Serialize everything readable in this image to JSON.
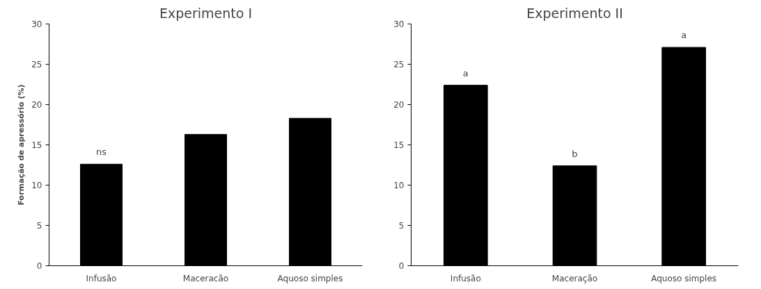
{
  "chart_data": [
    {
      "type": "bar",
      "title": "Experimento I",
      "ylabel": "Formação de apressório (%)",
      "categories": [
        "Infusão",
        "Maceracão",
        "Aquoso simples"
      ],
      "values": [
        12.6,
        16.3,
        18.3
      ],
      "color": "#000000",
      "ylim": [
        0,
        30
      ],
      "yticks": [
        0,
        5,
        10,
        15,
        20,
        25,
        30
      ],
      "grid": false,
      "annotations": [
        {
          "text": "ns",
          "x": "Infusão",
          "y": 12.6
        }
      ]
    },
    {
      "type": "bar",
      "title": "Experimento II",
      "categories": [
        "Infusão",
        "Maceração",
        "Aquoso simples"
      ],
      "values": [
        22.4,
        12.4,
        27.1
      ],
      "color": "#000000",
      "ylim": [
        0,
        30
      ],
      "yticks": [
        0,
        5,
        10,
        15,
        20,
        25,
        30
      ],
      "grid": false,
      "annotations": [
        {
          "text": "a",
          "x": "Infusão",
          "y": 22.4
        },
        {
          "text": "b",
          "x": "Maceração",
          "y": 12.4
        },
        {
          "text": "a",
          "x": "Aquoso simples",
          "y": 27.1
        }
      ]
    }
  ]
}
